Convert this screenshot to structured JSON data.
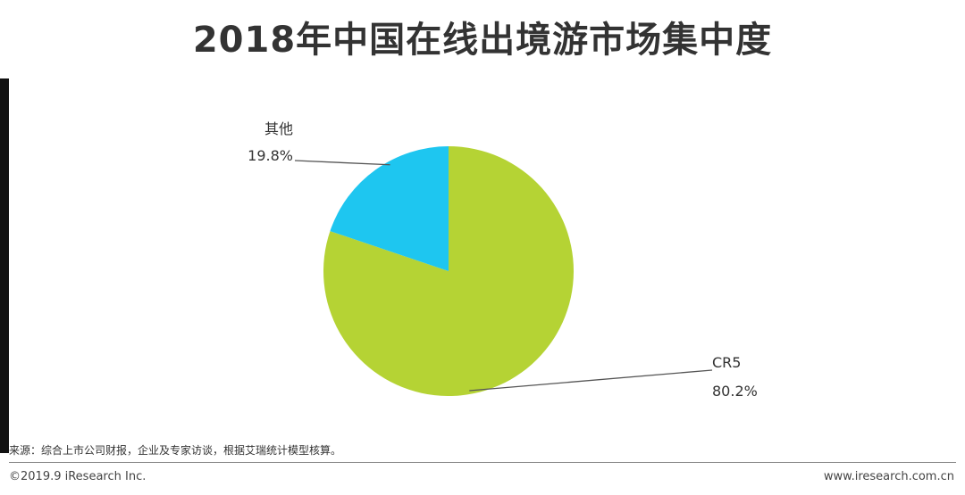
{
  "title": "2018年中国在线出境游市场集中度",
  "chart_data": {
    "type": "pie",
    "slices": [
      {
        "name": "CR5",
        "value": 80.2,
        "label": "80.2%",
        "color": "#b5d334"
      },
      {
        "name": "其他",
        "value": 19.8,
        "label": "19.8%",
        "color": "#1ec6f0"
      }
    ]
  },
  "footer": {
    "source": "来源：综合上市公司财报，企业及专家访谈，根据艾瑞统计模型核算。",
    "copyright": "©2019.9 iResearch Inc.",
    "site": "www.iresearch.com.cn"
  }
}
